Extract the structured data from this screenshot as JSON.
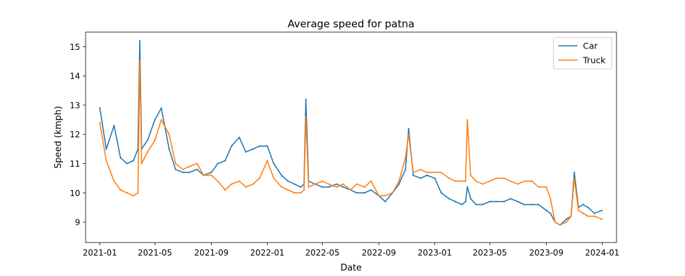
{
  "chart_data": {
    "type": "line",
    "title": "Average speed for patna",
    "xlabel": "Date",
    "ylabel": "Speed (kmph)",
    "xlim": [
      "2020-12-01",
      "2024-02-01"
    ],
    "ylim": [
      8.3,
      15.5
    ],
    "x_ticks": [
      "2021-01",
      "2021-05",
      "2021-09",
      "2022-01",
      "2022-05",
      "2022-09",
      "2023-01",
      "2023-05",
      "2023-09",
      "2024-01"
    ],
    "y_ticks": [
      9,
      10,
      11,
      12,
      13,
      14,
      15
    ],
    "grid": false,
    "legend_position": "upper right",
    "x": [
      "2021-01-01",
      "2021-01-15",
      "2021-02-01",
      "2021-02-15",
      "2021-03-01",
      "2021-03-15",
      "2021-03-25",
      "2021-03-29",
      "2021-04-02",
      "2021-04-15",
      "2021-05-01",
      "2021-05-15",
      "2021-06-01",
      "2021-06-15",
      "2021-07-01",
      "2021-07-15",
      "2021-08-01",
      "2021-08-15",
      "2021-09-01",
      "2021-09-15",
      "2021-10-01",
      "2021-10-15",
      "2021-11-01",
      "2021-11-15",
      "2021-12-01",
      "2021-12-15",
      "2022-01-01",
      "2022-01-15",
      "2022-02-01",
      "2022-02-15",
      "2022-03-01",
      "2022-03-15",
      "2022-03-22",
      "2022-03-26",
      "2022-04-01",
      "2022-04-15",
      "2022-05-01",
      "2022-05-15",
      "2022-06-01",
      "2022-06-15",
      "2022-07-01",
      "2022-07-15",
      "2022-08-01",
      "2022-08-15",
      "2022-09-01",
      "2022-09-15",
      "2022-10-01",
      "2022-10-15",
      "2022-10-29",
      "2022-11-05",
      "2022-11-15",
      "2022-12-01",
      "2022-12-15",
      "2023-01-01",
      "2023-01-15",
      "2023-02-01",
      "2023-02-15",
      "2023-03-01",
      "2023-03-09",
      "2023-03-13",
      "2023-03-20",
      "2023-04-01",
      "2023-04-15",
      "2023-05-01",
      "2023-05-15",
      "2023-06-01",
      "2023-06-15",
      "2023-07-01",
      "2023-07-15",
      "2023-08-01",
      "2023-08-15",
      "2023-09-01",
      "2023-09-10",
      "2023-09-20",
      "2023-10-01",
      "2023-10-15",
      "2023-10-25",
      "2023-11-01",
      "2023-11-10",
      "2023-11-20",
      "2023-12-01",
      "2023-12-15",
      "2023-12-31"
    ],
    "series": [
      {
        "name": "Car",
        "color": "#1f77b4",
        "values": [
          12.9,
          11.5,
          12.3,
          11.2,
          11.0,
          11.1,
          11.5,
          15.2,
          11.5,
          11.8,
          12.5,
          12.9,
          11.5,
          10.8,
          10.7,
          10.7,
          10.8,
          10.6,
          10.7,
          11.0,
          11.1,
          11.6,
          11.9,
          11.4,
          11.5,
          11.6,
          11.6,
          11.0,
          10.6,
          10.4,
          10.3,
          10.2,
          10.3,
          13.2,
          10.4,
          10.3,
          10.2,
          10.2,
          10.3,
          10.2,
          10.1,
          10.0,
          10.0,
          10.1,
          9.9,
          9.7,
          10.0,
          10.3,
          10.8,
          12.2,
          10.6,
          10.5,
          10.6,
          10.5,
          10.0,
          9.8,
          9.7,
          9.6,
          9.7,
          10.2,
          9.8,
          9.6,
          9.6,
          9.7,
          9.7,
          9.7,
          9.8,
          9.7,
          9.6,
          9.6,
          9.6,
          9.4,
          9.3,
          9.0,
          8.9,
          9.1,
          9.2,
          10.7,
          9.5,
          9.6,
          9.5,
          9.3,
          9.4
        ]
      },
      {
        "name": "Truck",
        "color": "#ff7f0e",
        "values": [
          12.4,
          11.1,
          10.4,
          10.1,
          10.0,
          9.9,
          10.0,
          14.5,
          11.0,
          11.4,
          11.8,
          12.5,
          12.0,
          11.0,
          10.8,
          10.9,
          11.0,
          10.6,
          10.6,
          10.4,
          10.1,
          10.3,
          10.4,
          10.2,
          10.3,
          10.5,
          11.1,
          10.5,
          10.2,
          10.1,
          10.0,
          10.0,
          10.1,
          12.6,
          10.2,
          10.3,
          10.4,
          10.3,
          10.2,
          10.3,
          10.1,
          10.3,
          10.2,
          10.4,
          9.9,
          9.9,
          10.0,
          10.4,
          11.2,
          12.0,
          10.7,
          10.8,
          10.7,
          10.7,
          10.7,
          10.5,
          10.4,
          10.4,
          10.4,
          12.5,
          10.6,
          10.4,
          10.3,
          10.4,
          10.5,
          10.5,
          10.4,
          10.3,
          10.4,
          10.4,
          10.2,
          10.2,
          9.8,
          9.0,
          8.9,
          9.0,
          9.2,
          10.5,
          9.4,
          9.3,
          9.2,
          9.2,
          9.1
        ]
      }
    ]
  }
}
